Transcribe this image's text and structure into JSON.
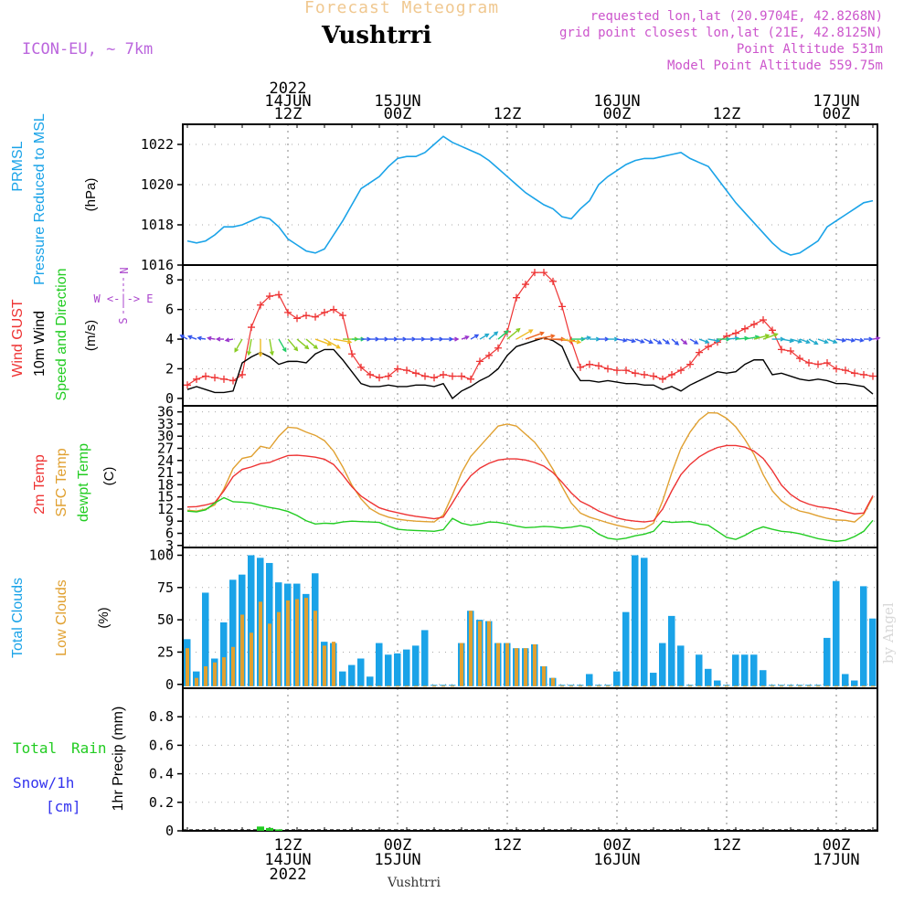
{
  "header": {
    "product": "Forecast Meteogram",
    "location": "Vushtrri",
    "model": "ICON-EU, ~ 7km",
    "requested": "requested lon,lat (20.9704E, 42.8268N)",
    "gridpoint": "grid point closest lon,lat (21E, 42.8125N)",
    "point_alt": "Point Altitude 531m",
    "model_alt": "Model Point Altitude 559.75m",
    "footer_location": "Vushtrri",
    "watermark": "by Angel"
  },
  "colors": {
    "pressure": "#1aa3e8",
    "gust": "#ee3333",
    "wind": "#000000",
    "green": "#22cc22",
    "sfc": "#e0a030",
    "cloud_total": "#1aa3e8",
    "cloud_low": "#e0a030",
    "rain": "#22cc22",
    "snow": "#3333ee",
    "purple": "#aa44cc"
  },
  "time_axis": {
    "n_hours": 76,
    "major_hours": [
      11,
      23,
      35,
      47,
      59,
      71
    ],
    "top_labels": [
      {
        "hour": 11,
        "lines": [
          "2022",
          "14JUN",
          "12Z"
        ]
      },
      {
        "hour": 23,
        "lines": [
          "15JUN",
          "00Z"
        ]
      },
      {
        "hour": 35,
        "lines": [
          "12Z"
        ]
      },
      {
        "hour": 47,
        "lines": [
          "16JUN",
          "00Z"
        ]
      },
      {
        "hour": 59,
        "lines": [
          "12Z"
        ]
      },
      {
        "hour": 71,
        "lines": [
          "17JUN",
          "00Z"
        ]
      }
    ],
    "bottom_labels": [
      {
        "hour": 11,
        "lines": [
          "12Z",
          "14JUN",
          "2022"
        ]
      },
      {
        "hour": 23,
        "lines": [
          "00Z",
          "15JUN"
        ]
      },
      {
        "hour": 35,
        "lines": [
          "12Z"
        ]
      },
      {
        "hour": 47,
        "lines": [
          "00Z",
          "16JUN"
        ]
      },
      {
        "hour": 59,
        "lines": [
          "12Z"
        ]
      },
      {
        "hour": 71,
        "lines": [
          "00Z",
          "17JUN"
        ]
      }
    ]
  },
  "chart_data": [
    {
      "type": "line",
      "name": "pressure",
      "labels": {
        "title1": "PRMSL",
        "title2": "Pressure Reduced to MSL",
        "unit": "(hPa)"
      },
      "ylim": [
        1016,
        1023
      ],
      "yticks": [
        1016,
        1018,
        1020,
        1022
      ],
      "series": [
        {
          "name": "PRMSL",
          "color_key": "pressure",
          "values": [
            1017.2,
            1017.1,
            1017.2,
            1017.5,
            1017.9,
            1017.9,
            1018.0,
            1018.2,
            1018.4,
            1018.3,
            1017.9,
            1017.3,
            1017.0,
            1016.7,
            1016.6,
            1016.8,
            1017.5,
            1018.2,
            1019.0,
            1019.8,
            1020.1,
            1020.4,
            1020.9,
            1021.3,
            1021.4,
            1021.4,
            1021.6,
            1022.0,
            1022.4,
            1022.1,
            1021.9,
            1021.7,
            1021.5,
            1021.2,
            1020.8,
            1020.4,
            1020.0,
            1019.6,
            1019.3,
            1019.0,
            1018.8,
            1018.4,
            1018.3,
            1018.8,
            1019.2,
            1020.0,
            1020.4,
            1020.7,
            1021.0,
            1021.2,
            1021.3,
            1021.3,
            1021.4,
            1021.5,
            1021.6,
            1021.3,
            1021.1,
            1020.9,
            1020.3,
            1019.7,
            1019.1,
            1018.6,
            1018.1,
            1017.6,
            1017.1,
            1016.7,
            1016.5,
            1016.6,
            1016.9,
            1017.2,
            1017.9,
            1018.2,
            1018.5,
            1018.8,
            1019.1,
            1019.2
          ]
        }
      ]
    },
    {
      "type": "line",
      "name": "wind",
      "labels": {
        "gust": "Wind GUST",
        "wind10": "10m Wind",
        "speeddir": "Speed and Direction",
        "unit": "(m/s)",
        "compass_n": "N",
        "compass_s": "S",
        "compass_we": "W <-|-> E"
      },
      "ylim": [
        -0.5,
        9
      ],
      "yticks": [
        0,
        2,
        4,
        6,
        8
      ],
      "series": [
        {
          "name": "Wind GUST",
          "color_key": "gust",
          "values": [
            0.9,
            1.3,
            1.5,
            1.4,
            1.3,
            1.2,
            1.6,
            4.8,
            6.3,
            6.9,
            7.0,
            5.8,
            5.4,
            5.6,
            5.5,
            5.8,
            6.0,
            5.6,
            3.0,
            2.1,
            1.6,
            1.4,
            1.5,
            2.0,
            1.9,
            1.7,
            1.5,
            1.4,
            1.6,
            1.5,
            1.5,
            1.3,
            2.5,
            2.9,
            3.4,
            4.5,
            6.8,
            7.7,
            8.5,
            8.5,
            7.9,
            6.2,
            3.9,
            2.1,
            2.3,
            2.2,
            2.0,
            1.9,
            1.9,
            1.7,
            1.6,
            1.5,
            1.3,
            1.6,
            1.9,
            2.3,
            3.1,
            3.5,
            3.8,
            4.2,
            4.4,
            4.7,
            5.0,
            5.3,
            4.6,
            3.3,
            3.2,
            2.7,
            2.4,
            2.3,
            2.4,
            2.0,
            1.9,
            1.7,
            1.6,
            1.5
          ]
        },
        {
          "name": "10m Wind",
          "color_key": "wind",
          "values": [
            0.6,
            0.8,
            0.6,
            0.4,
            0.4,
            0.5,
            2.4,
            2.8,
            3.1,
            2.8,
            2.3,
            2.5,
            2.5,
            2.4,
            3.0,
            3.3,
            3.3,
            2.6,
            1.8,
            1.0,
            0.8,
            0.8,
            0.9,
            0.8,
            0.8,
            0.9,
            0.9,
            0.8,
            1.0,
            0.0,
            0.5,
            0.8,
            1.2,
            1.5,
            2.0,
            2.9,
            3.5,
            3.7,
            3.9,
            4.1,
            3.9,
            3.5,
            2.1,
            1.2,
            1.2,
            1.1,
            1.2,
            1.1,
            1.0,
            1.0,
            0.9,
            0.9,
            0.6,
            0.8,
            0.5,
            0.9,
            1.2,
            1.5,
            1.8,
            1.7,
            1.8,
            2.3,
            2.6,
            2.6,
            1.6,
            1.7,
            1.5,
            1.3,
            1.2,
            1.3,
            1.2,
            1.0,
            1.0,
            0.9,
            0.8,
            0.3
          ]
        },
        {
          "name": "Wind Direction",
          "color_key": "green",
          "dir_from": [
            120,
            110,
            100,
            100,
            90,
            80,
            30,
            10,
            0,
            350,
            330,
            320,
            310,
            310,
            290,
            300,
            280,
            270,
            270,
            270,
            270,
            270,
            270,
            270,
            270,
            270,
            270,
            270,
            270,
            270,
            250,
            240,
            240,
            230,
            230,
            230,
            240,
            250,
            260,
            270,
            275,
            280,
            270,
            260,
            270,
            270,
            270,
            280,
            285,
            290,
            295,
            300,
            305,
            310,
            310,
            300,
            290,
            280,
            270,
            265,
            265,
            260,
            255,
            250,
            270,
            280,
            285,
            290,
            300,
            290,
            290,
            280,
            280,
            280,
            270,
            260
          ]
        }
      ]
    },
    {
      "type": "line",
      "name": "temperature",
      "labels": {
        "t2m": "2m Temp",
        "sfc": "SFC Temp",
        "dew": "dewpt Temp",
        "unit": "(C)"
      },
      "ylim": [
        2.5,
        37.5
      ],
      "yticks": [
        3,
        6,
        9,
        12,
        15,
        18,
        21,
        24,
        27,
        30,
        33,
        36
      ],
      "series": [
        {
          "name": "2m Temp",
          "color_key": "gust",
          "values": [
            12.5,
            12.6,
            13.0,
            13.6,
            16.5,
            20.0,
            21.8,
            22.4,
            23.2,
            23.5,
            24.4,
            25.2,
            25.3,
            25.1,
            24.8,
            24.3,
            23.0,
            20.4,
            17.5,
            15.2,
            13.7,
            12.3,
            11.6,
            11.1,
            10.6,
            10.2,
            9.9,
            9.6,
            10.0,
            13.5,
            17.2,
            20.2,
            22.1,
            23.3,
            24.1,
            24.4,
            24.4,
            24.1,
            23.5,
            22.6,
            21.0,
            18.6,
            16.0,
            13.9,
            12.8,
            11.5,
            10.6,
            9.8,
            9.3,
            9.0,
            8.8,
            9.1,
            12.0,
            16.5,
            20.5,
            23.0,
            24.9,
            26.2,
            27.2,
            27.7,
            27.7,
            27.3,
            26.3,
            24.5,
            21.5,
            17.9,
            15.6,
            14.1,
            13.2,
            12.6,
            12.3,
            11.9,
            11.3,
            10.8,
            11.0,
            15.3
          ]
        },
        {
          "name": "SFC Temp",
          "color_key": "sfc",
          "values": [
            11.7,
            11.5,
            12.0,
            13.0,
            17.0,
            22.0,
            24.5,
            25.0,
            27.5,
            27.0,
            30.0,
            32.2,
            32.0,
            31.0,
            30.2,
            28.9,
            26.3,
            22.4,
            17.9,
            14.5,
            12.1,
            10.8,
            10.0,
            9.5,
            9.2,
            9.0,
            8.9,
            8.8,
            10.5,
            15.5,
            21.0,
            25.0,
            27.5,
            30.0,
            32.5,
            33.0,
            32.5,
            30.5,
            28.5,
            25.5,
            21.8,
            17.5,
            13.5,
            11.0,
            10.0,
            9.3,
            8.6,
            8.0,
            7.5,
            7.0,
            7.2,
            8.5,
            14.0,
            21.0,
            27.0,
            31.0,
            34.0,
            35.8,
            35.7,
            34.4,
            32.3,
            29.2,
            25.5,
            20.5,
            16.5,
            14.0,
            12.5,
            11.5,
            11.0,
            10.3,
            9.7,
            9.3,
            9.2,
            8.8,
            10.7,
            15.0
          ]
        },
        {
          "name": "dewpt Temp",
          "color_key": "green",
          "values": [
            11.5,
            11.3,
            11.8,
            13.5,
            14.8,
            13.8,
            13.7,
            13.5,
            12.9,
            12.4,
            12.0,
            11.4,
            10.4,
            9.1,
            8.3,
            8.5,
            8.4,
            8.8,
            9.0,
            8.9,
            8.8,
            8.7,
            7.8,
            7.0,
            6.8,
            6.7,
            6.6,
            6.5,
            6.9,
            9.7,
            8.5,
            8.0,
            8.3,
            8.8,
            8.7,
            8.3,
            7.8,
            7.4,
            7.5,
            7.7,
            7.6,
            7.3,
            7.5,
            7.9,
            7.4,
            5.8,
            4.8,
            4.5,
            4.8,
            5.4,
            5.8,
            6.5,
            9.0,
            8.7,
            8.8,
            8.9,
            8.3,
            8.0,
            6.5,
            5.0,
            4.5,
            5.5,
            6.8,
            7.6,
            7.0,
            6.5,
            6.3,
            5.9,
            5.3,
            4.7,
            4.3,
            4.0,
            4.3,
            5.2,
            6.5,
            9.2
          ]
        }
      ]
    },
    {
      "type": "bar",
      "name": "clouds",
      "labels": {
        "total": "Total Clouds",
        "low": "Low Clouds",
        "unit": "(%)"
      },
      "ylim": [
        -3,
        106
      ],
      "yticks": [
        0,
        25,
        50,
        75,
        100
      ],
      "series": [
        {
          "name": "Total Clouds",
          "color_key": "cloud_total",
          "values": [
            35,
            10,
            71,
            20,
            48,
            81,
            85,
            100,
            98,
            94,
            79,
            78,
            78,
            70,
            86,
            33,
            32,
            10,
            15,
            20,
            6,
            32,
            23,
            24,
            27,
            30,
            42,
            0,
            0,
            0,
            32,
            57,
            50,
            49,
            32,
            32,
            28,
            28,
            31,
            14,
            5,
            0,
            0,
            0,
            8,
            0,
            0,
            10,
            56,
            100,
            98,
            9,
            32,
            53,
            30,
            0,
            23,
            12,
            3,
            0,
            23,
            23,
            23,
            11,
            0,
            0,
            0,
            0,
            0,
            0,
            36,
            80,
            8,
            3,
            76,
            51
          ]
        },
        {
          "name": "Low Clouds",
          "color_key": "cloud_low",
          "values": [
            28,
            5,
            14,
            17,
            21,
            29,
            54,
            40,
            64,
            47,
            56,
            65,
            66,
            67,
            57,
            30,
            33,
            0,
            0,
            0,
            0,
            0,
            0,
            0,
            0,
            0,
            0,
            0,
            0,
            0,
            32,
            57,
            49,
            49,
            32,
            32,
            28,
            28,
            31,
            14,
            5,
            0,
            0,
            0,
            0,
            0,
            0,
            0,
            0,
            0,
            0,
            0,
            0,
            0,
            0,
            0,
            0,
            0,
            0,
            0,
            0,
            0,
            0,
            0,
            0,
            0,
            0,
            0,
            0,
            0,
            0,
            0,
            0,
            0,
            0,
            0
          ]
        }
      ]
    },
    {
      "type": "bar",
      "name": "precip",
      "labels": {
        "total": "Total",
        "rain": "Rain",
        "snow": "Snow/1h",
        "cm": "[cm]",
        "unit": "1hr Precip (mm)"
      },
      "ylim": [
        0,
        1.0
      ],
      "yticks": [
        0,
        0.2,
        0.4,
        0.6,
        0.8
      ],
      "series": [
        {
          "name": "Rain",
          "color_key": "rain",
          "values": [
            0,
            0,
            0,
            0,
            0,
            0,
            0,
            0,
            0.03,
            0.02,
            0.01,
            0,
            0,
            0,
            0,
            0,
            0,
            0,
            0,
            0,
            0,
            0,
            0,
            0,
            0,
            0,
            0,
            0,
            0,
            0,
            0,
            0,
            0,
            0,
            0,
            0,
            0,
            0,
            0,
            0,
            0,
            0,
            0,
            0,
            0,
            0,
            0,
            0,
            0,
            0,
            0,
            0,
            0,
            0,
            0,
            0,
            0,
            0,
            0,
            0,
            0,
            0,
            0,
            0,
            0,
            0,
            0,
            0,
            0,
            0,
            0,
            0,
            0,
            0,
            0,
            0
          ]
        }
      ]
    }
  ]
}
